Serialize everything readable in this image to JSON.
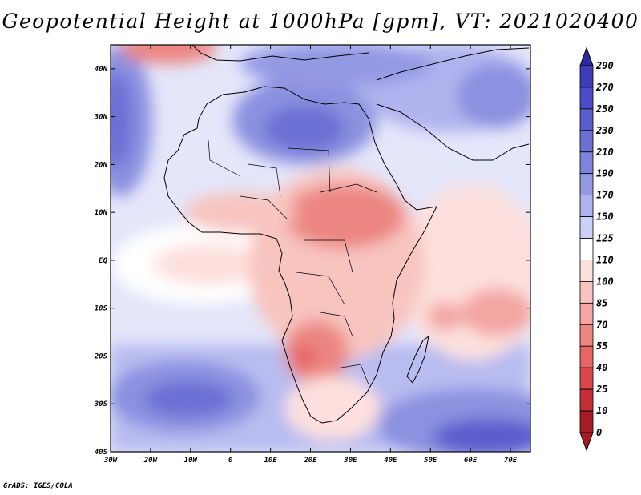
{
  "title": "Geopotential Height at 1000hPa [gpm], VT: 2021020400",
  "footer": "GrADS: IGES/COLA",
  "map": {
    "x_range": [
      -30,
      75
    ],
    "y_range": [
      -40,
      45
    ],
    "lon_ticks": [
      "30W",
      "20W",
      "10W",
      "0",
      "10E",
      "20E",
      "30E",
      "40E",
      "50E",
      "60E",
      "70E"
    ],
    "lat_ticks": [
      "40N",
      "30N",
      "20N",
      "10N",
      "EQ",
      "10S",
      "20S",
      "30S",
      "40S"
    ]
  },
  "colorbar": {
    "labels": [
      "290",
      "270",
      "250",
      "230",
      "210",
      "190",
      "170",
      "150",
      "125",
      "110",
      "100",
      "85",
      "70",
      "55",
      "40",
      "25",
      "10",
      "0"
    ],
    "colors": [
      "#2c2aa0",
      "#3d3db8",
      "#4a4cc6",
      "#5a5dcc",
      "#6b6fd4",
      "#7e83dc",
      "#9499e4",
      "#b0b4ee",
      "#ccd0f6",
      "#ffffff",
      "#fde0de",
      "#f8c4c0",
      "#f3a6a2",
      "#ec8682",
      "#e56662",
      "#d9474a",
      "#c42f36",
      "#a51c26"
    ]
  },
  "colors": {
    "ocean_low": "#7e83dc",
    "ocean_mid": "#ccd0f6",
    "land_low": "#f3a6a2",
    "land_mid": "#fde0de"
  }
}
